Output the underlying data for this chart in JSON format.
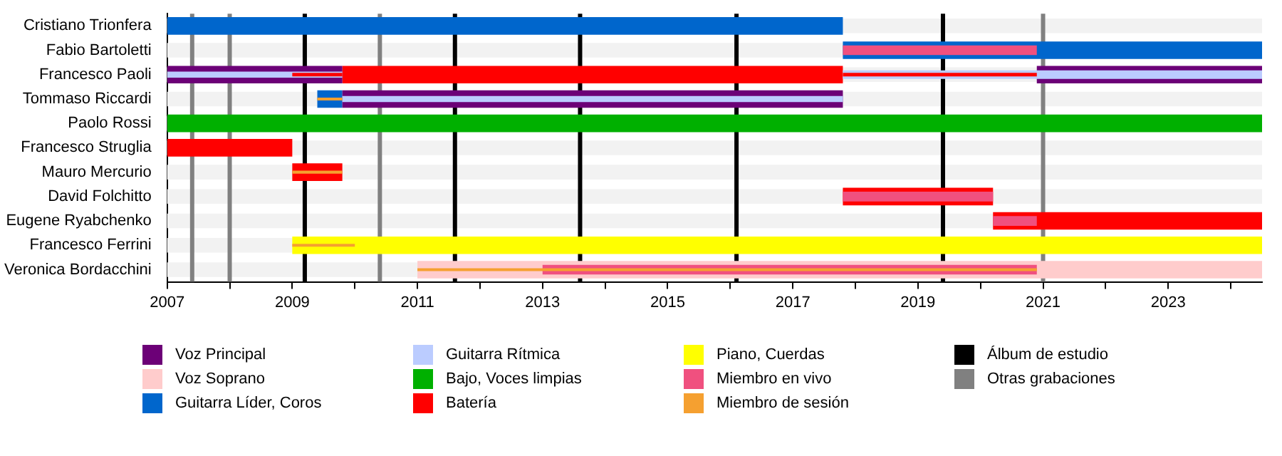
{
  "chart_data": {
    "type": "bar",
    "orientation": "horizontal",
    "categories": [
      "Cristiano Trionfera",
      "Fabio Bartoletti",
      "Francesco Paoli",
      "Tommaso Riccardi",
      "Paolo Rossi",
      "Francesco Struglia",
      "Mauro Mercurio",
      "David Folchitto",
      "Eugene Ryabchenko",
      "Francesco Ferrini",
      "Veronica Bordacchini"
    ],
    "series": [
      {
        "name": "Voz Principal",
        "color": "#6c0077",
        "values": [
          null,
          null,
          2.8,
          8.0,
          null,
          null,
          null,
          null,
          null,
          null,
          null
        ],
        "base": [
          null,
          null,
          2007,
          2009.8,
          null,
          null,
          null,
          null,
          null,
          null,
          null
        ]
      },
      {
        "name": "Voz Soprano",
        "color": "#ffcccc",
        "values": [
          null,
          null,
          null,
          null,
          null,
          null,
          null,
          null,
          null,
          null,
          13.5
        ],
        "base": [
          null,
          null,
          null,
          null,
          null,
          null,
          null,
          null,
          null,
          null,
          2011.0
        ]
      },
      {
        "name": "Guitarra Líder, Coros",
        "color": "#0066cc",
        "values": [
          10.8,
          6.7,
          null,
          0.4,
          null,
          null,
          null,
          null,
          null,
          null,
          null
        ],
        "base": [
          2007,
          2017.8,
          null,
          2009.4,
          null,
          null,
          null,
          null,
          null,
          null,
          null
        ]
      },
      {
        "name": "Guitarra Rítmica",
        "color": "#bbccff",
        "values": [
          null,
          null,
          2.8,
          8.0,
          null,
          null,
          null,
          null,
          null,
          null,
          null
        ],
        "base": [
          null,
          null,
          2007,
          2009.8,
          null,
          null,
          null,
          null,
          null,
          null,
          null
        ]
      },
      {
        "name": "Bajo, Voces limpias",
        "color": "#00b000",
        "values": [
          null,
          null,
          null,
          null,
          17.5,
          null,
          null,
          null,
          null,
          null,
          null
        ],
        "base": [
          null,
          null,
          null,
          null,
          2007,
          null,
          null,
          null,
          null,
          null,
          null
        ]
      },
      {
        "name": "Batería",
        "color": "#ff0000",
        "values": [
          null,
          null,
          8.0,
          null,
          null,
          2.0,
          0.8,
          2.4,
          4.3,
          null,
          null
        ],
        "base": [
          null,
          null,
          2009.8,
          null,
          null,
          2007,
          2009.0,
          2017.8,
          2020.2,
          null,
          null
        ]
      },
      {
        "name": "Piano, Cuerdas",
        "color": "#ffff00",
        "values": [
          null,
          null,
          null,
          null,
          null,
          null,
          null,
          null,
          null,
          15.5,
          null
        ],
        "base": [
          null,
          null,
          null,
          null,
          null,
          null,
          null,
          null,
          null,
          2009.0,
          null
        ]
      },
      {
        "name": "Miembro en vivo",
        "color": "#f0507f",
        "values": [
          null,
          3.1,
          null,
          null,
          null,
          null,
          null,
          2.4,
          0.7,
          null,
          7.9
        ],
        "base": [
          null,
          2017.8,
          null,
          null,
          null,
          null,
          null,
          2017.8,
          2020.2,
          null,
          2013.0
        ]
      },
      {
        "name": "Miembro de sesión",
        "color": "#f5a030",
        "values": [
          null,
          null,
          null,
          0.4,
          null,
          null,
          0.8,
          null,
          null,
          1.0,
          9.9
        ],
        "base": [
          null,
          null,
          null,
          2009.4,
          null,
          null,
          2009.0,
          null,
          null,
          2009.0,
          2011.0
        ]
      },
      {
        "color": "#6c0077",
        "values": [
          null,
          null,
          3.6,
          null,
          null,
          null,
          null,
          null,
          null,
          null,
          null
        ],
        "base": [
          null,
          null,
          2020.9,
          null,
          null,
          null,
          null,
          null,
          null,
          null,
          null
        ]
      },
      {
        "color": "#bbccff",
        "values": [
          null,
          null,
          6.7,
          null,
          null,
          null,
          null,
          null,
          null,
          null,
          null
        ],
        "base": [
          null,
          null,
          2017.8,
          null,
          null,
          null,
          null,
          null,
          null,
          null,
          null
        ]
      },
      {
        "color": "#ff0000",
        "values": [
          null,
          null,
          0.8,
          null,
          null,
          null,
          null,
          null,
          null,
          null,
          null
        ],
        "base": [
          null,
          null,
          2009.0,
          null,
          null,
          null,
          null,
          null,
          null,
          null,
          null
        ]
      },
      {
        "color": "#ff0000",
        "values": [
          null,
          null,
          3.1,
          null,
          null,
          null,
          null,
          null,
          null,
          null,
          null
        ],
        "base": [
          null,
          null,
          2017.8,
          null,
          null,
          null,
          null,
          null,
          null,
          null,
          null
        ]
      }
    ],
    "xlim": [
      2007,
      2024.5
    ],
    "xticks": [
      2007,
      {
        "value": 2008,
        "label": null
      },
      2009,
      {
        "value": 2010,
        "label": null
      },
      2011,
      {
        "value": 2012,
        "label": null
      },
      2013,
      {
        "value": 2014,
        "label": null
      },
      2015,
      {
        "value": 2016,
        "label": null
      },
      2017,
      {
        "value": 2018,
        "label": null
      },
      2019,
      {
        "value": 2020,
        "label": null
      },
      2021,
      {
        "value": 2022,
        "label": null
      },
      2023,
      {
        "value": 2024,
        "label": null
      }
    ],
    "ref_lines": [
      {
        "axis": "x",
        "value": 2009.2,
        "label": "Álbum de estudio",
        "color": "#000000"
      },
      {
        "axis": "x",
        "value": 2011.6,
        "color": "#000000"
      },
      {
        "axis": "x",
        "value": 2013.6,
        "color": "#000000"
      },
      {
        "axis": "x",
        "value": 2016.1,
        "color": "#000000"
      },
      {
        "axis": "x",
        "value": 2019.4,
        "color": "#000000"
      },
      {
        "axis": "x",
        "value": 2007.4,
        "label": "Otras grabaciones",
        "color": "#808080"
      },
      {
        "axis": "x",
        "value": 2008.0,
        "color": "#808080"
      },
      {
        "axis": "x",
        "value": 2010.4,
        "color": "#808080"
      },
      {
        "axis": "x",
        "value": 2021.0,
        "color": "#808080"
      }
    ],
    "grid": false,
    "legend": "bottom"
  }
}
